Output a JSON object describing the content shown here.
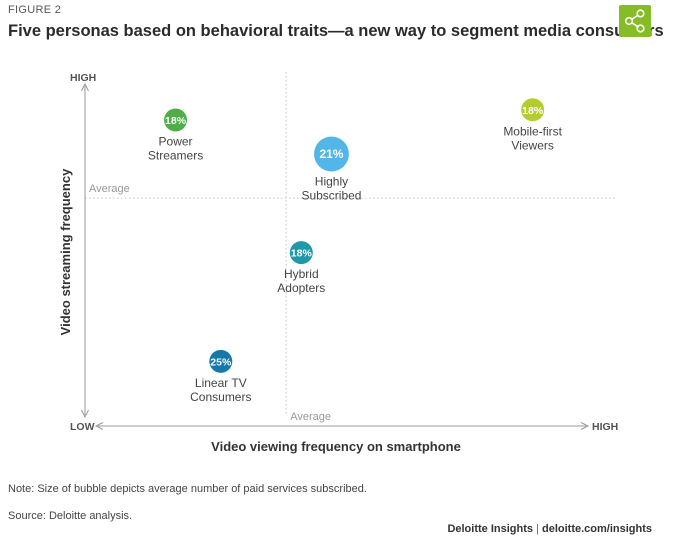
{
  "figure_label": "FIGURE 2",
  "title": "Five personas based on behavioral traits—a new way to segment media consumers",
  "share_icon": "share-icon",
  "colors": {
    "share_bg": "#86bc25",
    "axis": "#999999",
    "dotted": "#cfcfcf"
  },
  "chart_data": {
    "type": "scatter",
    "title": "",
    "xlabel": "Video viewing frequency on smartphone",
    "ylabel": "Video streaming frequency",
    "x_low_label": "LOW",
    "x_high_label": "HIGH",
    "y_high_label": "HIGH",
    "x_average_label": "Average",
    "y_average_label": "Average",
    "xlim": [
      0,
      100
    ],
    "ylim": [
      0,
      100
    ],
    "x_average": 40,
    "y_average": 67,
    "grid": false,
    "series": [
      {
        "label_lines": [
          "Power",
          "Streamers"
        ],
        "share": "18%",
        "x": 18,
        "y": 90,
        "size": 1.0,
        "color": "#4fae48"
      },
      {
        "label_lines": [
          "Highly",
          "Subscribed"
        ],
        "share": "21%",
        "x": 49,
        "y": 80,
        "size": 2.3,
        "color": "#53b6e9"
      },
      {
        "label_lines": [
          "Mobile-first",
          "Viewers"
        ],
        "share": "18%",
        "x": 89,
        "y": 93,
        "size": 1.0,
        "color": "#b5cc2e"
      },
      {
        "label_lines": [
          "Hybrid",
          "Adopters"
        ],
        "share": "18%",
        "x": 43,
        "y": 51,
        "size": 1.0,
        "color": "#1f98a7"
      },
      {
        "label_lines": [
          "Linear TV",
          "Consumers"
        ],
        "share": "25%",
        "x": 27,
        "y": 19,
        "size": 1.0,
        "color": "#1677a8"
      }
    ]
  },
  "note": "Note: Size of bubble depicts average number of paid services subscribed.",
  "source": "Source: Deloitte analysis.",
  "credit_brand": "Deloitte Insights",
  "credit_sep": "|",
  "credit_url": "deloitte.com/insights"
}
